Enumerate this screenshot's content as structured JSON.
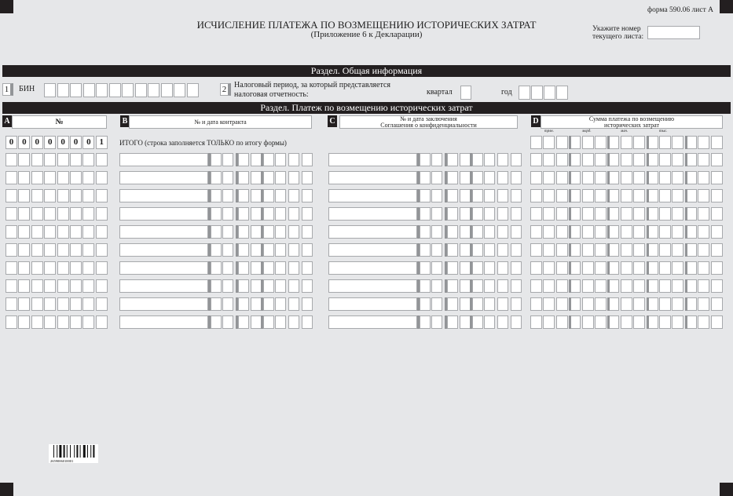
{
  "header": {
    "title": "ИСЧИСЛЕНИЕ ПЛАТЕЖА ПО ВОЗМЕЩЕНИЮ ИСТОРИЧЕСКИХ ЗАТРАТ",
    "subtitle": "(Приложение 6 к Декларации)",
    "form_id": "форма 590.06 лист А",
    "sheet_label_1": "Укажите номер",
    "sheet_label_2": "текущего листа:",
    "sheet_value": ""
  },
  "section1": {
    "title": "Раздел. Общая информация",
    "field1_num": "1",
    "field1_label": "БИН",
    "bin": [
      "",
      "",
      "",
      "",
      "",
      "",
      "",
      "",
      "",
      "",
      "",
      ""
    ],
    "field2_num": "2",
    "field2_label_1": "Налоговый период, за который представляется",
    "field2_label_2": "налоговая отчетность:",
    "quarter_label": "квартал",
    "quarter": "",
    "year_label": "год",
    "year": [
      "",
      "",
      "",
      ""
    ]
  },
  "section2": {
    "title": "Раздел. Платеж по возмещению исторических затрат",
    "col_a_letter": "A",
    "col_a": "№",
    "col_b_letter": "B",
    "col_b": "№  и дата контракта",
    "col_c_letter": "C",
    "col_c_1": "№ и дата заключения",
    "col_c_2": "Соглашения о конфиденциальности",
    "col_d_letter": "D",
    "col_d_1": "Сумма платежа по возмещению",
    "col_d_2": "исторических затрат",
    "units": [
      "трлн.",
      "млрд.",
      "млн.",
      "тыс."
    ],
    "total_number": [
      "0",
      "0",
      "0",
      "0",
      "0",
      "0",
      "0",
      "1"
    ],
    "total_label": "ИТОГО (строка заполняется ТОЛЬКО по итогу формы)",
    "total_amount": "",
    "rows": [
      {
        "number": "",
        "contract": "",
        "agreement": "",
        "amount": ""
      },
      {
        "number": "",
        "contract": "",
        "agreement": "",
        "amount": ""
      },
      {
        "number": "",
        "contract": "",
        "agreement": "",
        "amount": ""
      },
      {
        "number": "",
        "contract": "",
        "agreement": "",
        "amount": ""
      },
      {
        "number": "",
        "contract": "",
        "agreement": "",
        "amount": ""
      },
      {
        "number": "",
        "contract": "",
        "agreement": "",
        "amount": ""
      },
      {
        "number": "",
        "contract": "",
        "agreement": "",
        "amount": ""
      },
      {
        "number": "",
        "contract": "",
        "agreement": "",
        "amount": ""
      },
      {
        "number": "",
        "contract": "",
        "agreement": "",
        "amount": ""
      },
      {
        "number": "",
        "contract": "",
        "agreement": "",
        "amount": ""
      }
    ]
  },
  "barcode": {
    "digits": "2659006010001"
  }
}
